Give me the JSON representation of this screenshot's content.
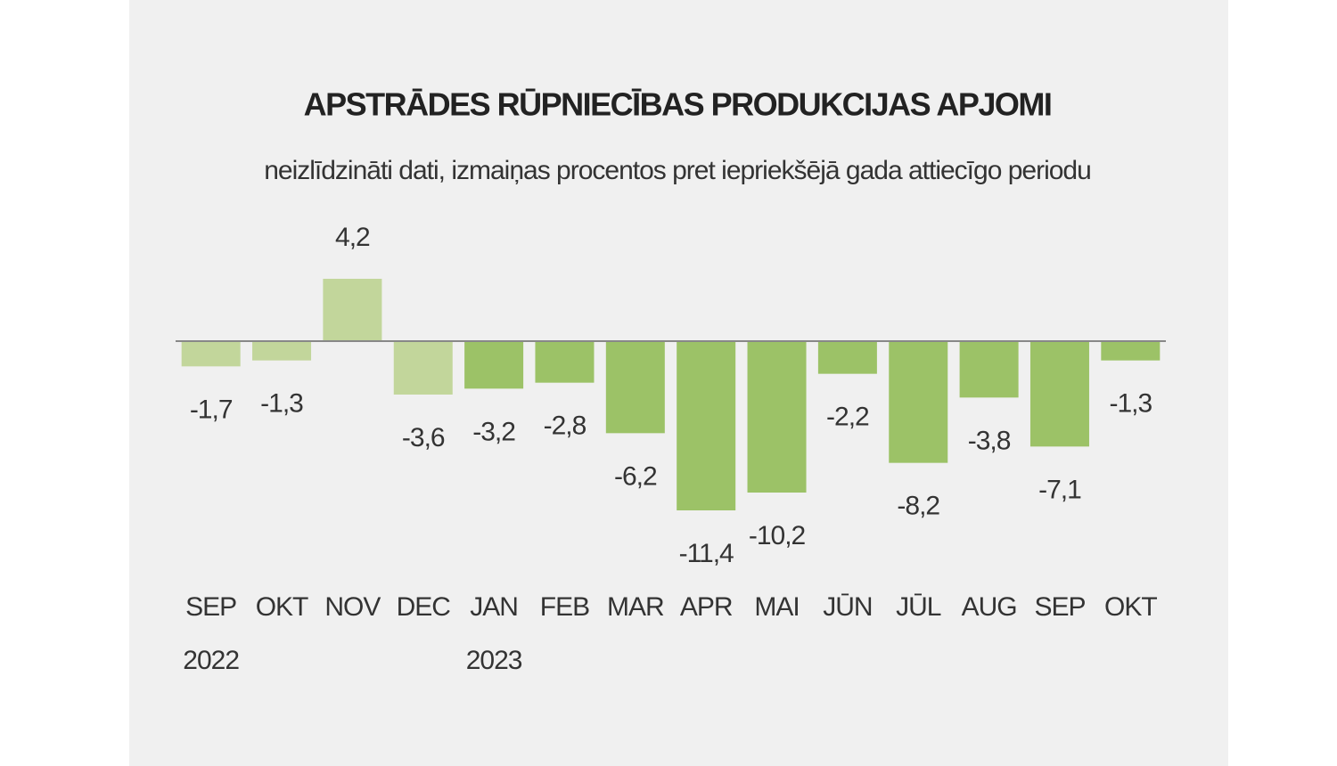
{
  "chart_data": {
    "type": "bar",
    "title": "APSTRĀDES RŪPNIECĪBAS PRODUKCIJAS APJOMI",
    "subtitle": "neizlīdzināti dati, izmaiņas procentos pret iepriekšējā gada attiecīgo periodu",
    "categories": [
      "SEP",
      "OKT",
      "NOV",
      "DEC",
      "JAN",
      "FEB",
      "MAR",
      "APR",
      "MAI",
      "JŪN",
      "JŪL",
      "AUG",
      "SEP",
      "OKT"
    ],
    "category_years": [
      "2022",
      null,
      null,
      null,
      "2023",
      null,
      null,
      null,
      null,
      null,
      null,
      null,
      null,
      null
    ],
    "values": [
      -1.7,
      -1.3,
      4.2,
      -3.6,
      -3.2,
      -2.8,
      -6.2,
      -11.4,
      -10.2,
      -2.2,
      -8.2,
      -3.8,
      -7.1,
      -1.3
    ],
    "value_labels": [
      "-1,7",
      "-1,3",
      "4,2",
      "-3,6",
      "-3,2",
      "-2,8",
      "-6,2",
      "-11,4",
      "-10,2",
      "-2,2",
      "-8,2",
      "-3,8",
      "-7,1",
      "-1,3"
    ],
    "colors": [
      "#c2d69b",
      "#c2d69b",
      "#c2d69b",
      "#c2d69b",
      "#9cc267",
      "#9cc267",
      "#9cc267",
      "#9cc267",
      "#9cc267",
      "#9cc267",
      "#9cc267",
      "#9cc267",
      "#9cc267",
      "#9cc267"
    ]
  }
}
